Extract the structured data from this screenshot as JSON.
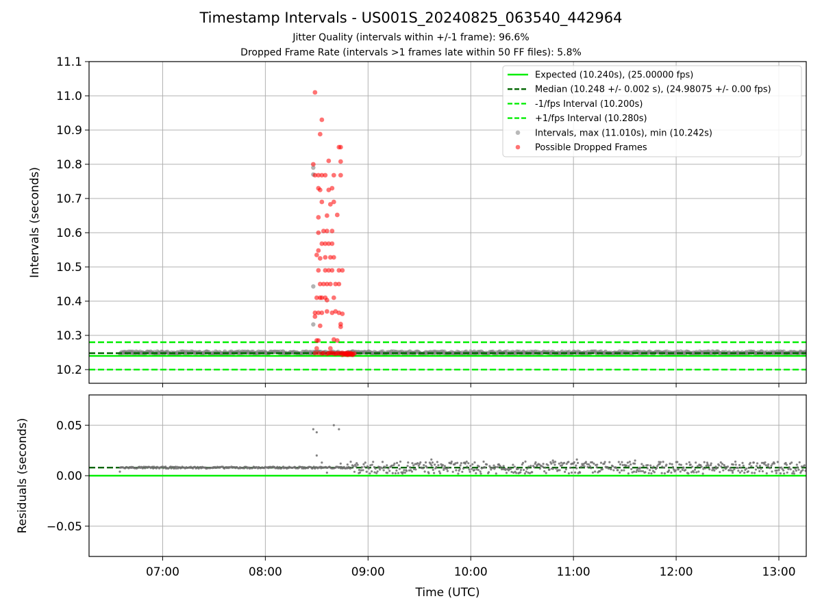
{
  "title": "Timestamp Intervals - US001S_20240825_063540_442964",
  "subtitle_1": "Jitter Quality (intervals within +/-1 frame): 96.6%",
  "subtitle_2": "Dropped Frame Rate (intervals >1 frames late within 50 FF files): 5.8%",
  "colors": {
    "expected": "#00ee00",
    "median": "#006400",
    "fps_interval": "#00ee00",
    "intervals": "#808080",
    "dropped": "#ff0000",
    "residuals": "#6e6e6e",
    "grid": "#b0b0b0"
  },
  "chart_data": [
    {
      "type": "scatter",
      "xlabel": "",
      "ylabel": "Intervals (seconds)",
      "xlim": [
        "06:17",
        "13:16"
      ],
      "ylim": [
        10.16,
        11.1
      ],
      "yticks": [
        "10.2",
        "10.3",
        "10.4",
        "10.5",
        "10.6",
        "10.7",
        "10.8",
        "10.9",
        "11.0",
        "11.1"
      ],
      "grid": true,
      "legend_position": "top-right",
      "reference_lines": [
        {
          "name": "Expected (10.240s), (25.00000 fps)",
          "y": 10.24,
          "style": "solid",
          "color_key": "expected"
        },
        {
          "name": "Median (10.248 +/- 0.002 s), (24.98075 +/- 0.00 fps)",
          "y": 10.248,
          "style": "dashed",
          "color_key": "median"
        },
        {
          "name": "-1/fps Interval (10.200s)",
          "y": 10.2,
          "style": "dashed",
          "color_key": "fps_interval"
        },
        {
          "name": "+1/fps Interval (10.280s)",
          "y": 10.28,
          "style": "dashed",
          "color_key": "fps_interval"
        }
      ],
      "series": [
        {
          "name": "Intervals, max (11.010s), min (10.242s)",
          "marker": "circle",
          "color_key": "intervals",
          "baseline_band": {
            "x_start": "06:35",
            "x_end": "13:16",
            "y_center": 10.249,
            "y_spread": 0.004
          },
          "points": [
            [
              "08:28",
              10.77
            ],
            [
              "08:28",
              10.79
            ],
            [
              "08:28",
              10.443
            ],
            [
              "08:28",
              10.332
            ],
            [
              "08:29",
              10.25
            ],
            [
              "08:34",
              10.25
            ],
            [
              "08:42",
              10.25
            ],
            [
              "08:49",
              10.249
            ],
            [
              "08:51",
              10.249
            ]
          ]
        },
        {
          "name": "Possible Dropped Frames",
          "marker": "circle",
          "color_key": "dropped",
          "points": [
            [
              "08:29",
              11.01
            ],
            [
              "08:33",
              10.93
            ],
            [
              "08:32",
              10.888
            ],
            [
              "08:43",
              10.85
            ],
            [
              "08:44",
              10.85
            ],
            [
              "08:37",
              10.81
            ],
            [
              "08:44",
              10.808
            ],
            [
              "08:28",
              10.8
            ],
            [
              "08:29",
              10.768
            ],
            [
              "08:31",
              10.768
            ],
            [
              "08:33",
              10.768
            ],
            [
              "08:35",
              10.768
            ],
            [
              "08:40",
              10.768
            ],
            [
              "08:44",
              10.768
            ],
            [
              "08:31",
              10.73
            ],
            [
              "08:32",
              10.725
            ],
            [
              "08:37",
              10.725
            ],
            [
              "08:39",
              10.73
            ],
            [
              "08:33",
              10.69
            ],
            [
              "08:38",
              10.683
            ],
            [
              "08:40",
              10.69
            ],
            [
              "08:36",
              10.65
            ],
            [
              "08:42",
              10.652
            ],
            [
              "08:31",
              10.645
            ],
            [
              "08:34",
              10.605
            ],
            [
              "08:36",
              10.605
            ],
            [
              "08:39",
              10.605
            ],
            [
              "08:31",
              10.6
            ],
            [
              "08:33",
              10.568
            ],
            [
              "08:35",
              10.568
            ],
            [
              "08:37",
              10.568
            ],
            [
              "08:39",
              10.568
            ],
            [
              "08:31",
              10.548
            ],
            [
              "08:30",
              10.535
            ],
            [
              "08:32",
              10.525
            ],
            [
              "08:35",
              10.528
            ],
            [
              "08:38",
              10.528
            ],
            [
              "08:40",
              10.528
            ],
            [
              "08:31",
              10.49
            ],
            [
              "08:35",
              10.49
            ],
            [
              "08:37",
              10.49
            ],
            [
              "08:39",
              10.49
            ],
            [
              "08:43",
              10.49
            ],
            [
              "08:45",
              10.49
            ],
            [
              "08:32",
              10.45
            ],
            [
              "08:34",
              10.45
            ],
            [
              "08:36",
              10.45
            ],
            [
              "08:38",
              10.45
            ],
            [
              "08:41",
              10.45
            ],
            [
              "08:43",
              10.45
            ],
            [
              "08:30",
              10.41
            ],
            [
              "08:32",
              10.41
            ],
            [
              "08:33",
              10.41
            ],
            [
              "08:35",
              10.41
            ],
            [
              "08:36",
              10.403
            ],
            [
              "08:40",
              10.41
            ],
            [
              "08:29",
              10.366
            ],
            [
              "08:31",
              10.366
            ],
            [
              "08:33",
              10.366
            ],
            [
              "08:36",
              10.37
            ],
            [
              "08:39",
              10.366
            ],
            [
              "08:41",
              10.37
            ],
            [
              "08:43",
              10.366
            ],
            [
              "08:45",
              10.363
            ],
            [
              "08:29",
              10.355
            ],
            [
              "08:44",
              10.333
            ],
            [
              "08:32",
              10.328
            ],
            [
              "08:44",
              10.325
            ],
            [
              "08:30",
              10.285
            ],
            [
              "08:31",
              10.285
            ],
            [
              "08:40",
              10.288
            ],
            [
              "08:42",
              10.285
            ],
            [
              "08:30",
              10.262
            ],
            [
              "08:38",
              10.262
            ],
            [
              "08:29",
              10.248
            ],
            [
              "08:31",
              10.248
            ],
            [
              "08:33",
              10.247
            ],
            [
              "08:34",
              10.248
            ],
            [
              "08:36",
              10.246
            ],
            [
              "08:37",
              10.248
            ],
            [
              "08:38",
              10.248
            ],
            [
              "08:39",
              10.249
            ],
            [
              "08:40",
              10.247
            ],
            [
              "08:41",
              10.246
            ],
            [
              "08:42",
              10.248
            ],
            [
              "08:43",
              10.247
            ],
            [
              "08:44",
              10.248
            ],
            [
              "08:45",
              10.249
            ],
            [
              "08:46",
              10.247
            ],
            [
              "08:46",
              10.245
            ],
            [
              "08:47",
              10.248
            ],
            [
              "08:47",
              10.246
            ],
            [
              "08:48",
              10.249
            ],
            [
              "08:48",
              10.245
            ],
            [
              "08:49",
              10.247
            ],
            [
              "08:49",
              10.244
            ],
            [
              "08:50",
              10.248
            ],
            [
              "08:50",
              10.246
            ],
            [
              "08:51",
              10.245
            ],
            [
              "08:52",
              10.247
            ],
            [
              "08:45",
              10.243
            ],
            [
              "08:47",
              10.244
            ],
            [
              "08:48",
              10.243
            ],
            [
              "08:50",
              10.244
            ],
            [
              "08:51",
              10.243
            ]
          ]
        }
      ]
    },
    {
      "type": "scatter",
      "xlabel": "Time (UTC)",
      "ylabel": "Residuals (seconds)",
      "xlim": [
        "06:17",
        "13:16"
      ],
      "ylim": [
        -0.08,
        0.08
      ],
      "yticks": [
        "−0.05",
        "0.00",
        "0.05"
      ],
      "xticks": [
        "07:00",
        "08:00",
        "09:00",
        "10:00",
        "11:00",
        "12:00",
        "13:00"
      ],
      "grid": true,
      "reference_lines": [
        {
          "y": 0.0,
          "style": "solid",
          "color_key": "expected"
        },
        {
          "y": 0.008,
          "style": "dashed",
          "color_key": "median"
        }
      ],
      "series": [
        {
          "marker": "dot",
          "color_key": "residuals",
          "baseline_band": {
            "x_start": "06:35",
            "x_end": "13:16",
            "y_center": 0.008,
            "y_spread": 0.003,
            "spread_after": "08:50",
            "spread_after_value": 0.006
          },
          "points": [
            [
              "08:28",
              0.046
            ],
            [
              "08:30",
              0.043
            ],
            [
              "08:40",
              0.05
            ],
            [
              "08:43",
              0.046
            ],
            [
              "08:30",
              0.02
            ],
            [
              "08:33",
              0.013
            ],
            [
              "08:36",
              0.003
            ],
            [
              "08:44",
              0.012
            ],
            [
              "08:48",
              0.011
            ],
            [
              "06:35",
              0.004
            ],
            [
              "09:37",
              0.016
            ],
            [
              "10:48",
              0.015
            ],
            [
              "11:02",
              0.016
            ],
            [
              "11:36",
              0.015
            ],
            [
              "12:33",
              0.003
            ]
          ]
        }
      ]
    }
  ]
}
